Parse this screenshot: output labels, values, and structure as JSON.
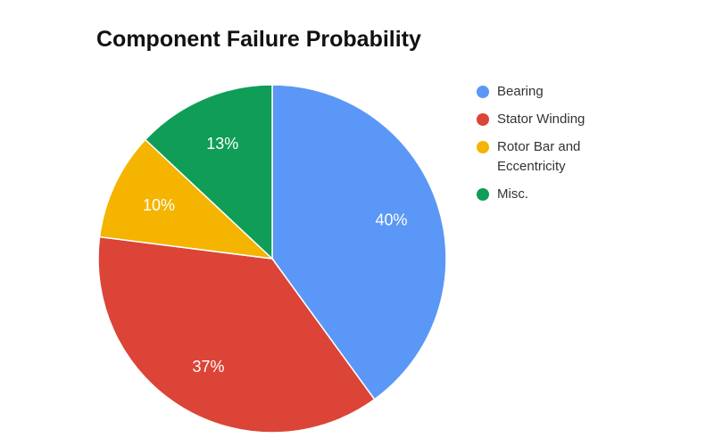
{
  "chart_data": {
    "type": "pie",
    "title": "Component Failure Probability",
    "legend_position": "right",
    "start_angle": "top, clockwise",
    "slices": [
      {
        "label": "Bearing",
        "value": 40,
        "display": "40%",
        "color": "#5b97f6"
      },
      {
        "label": "Stator Winding",
        "value": 37,
        "display": "37%",
        "color": "#db4437"
      },
      {
        "label": "Rotor Bar and Eccentricity",
        "value": 10,
        "display": "10%",
        "color": "#f4b400"
      },
      {
        "label": "Misc.",
        "value": 13,
        "display": "13%",
        "color": "#0f9d58"
      }
    ]
  }
}
